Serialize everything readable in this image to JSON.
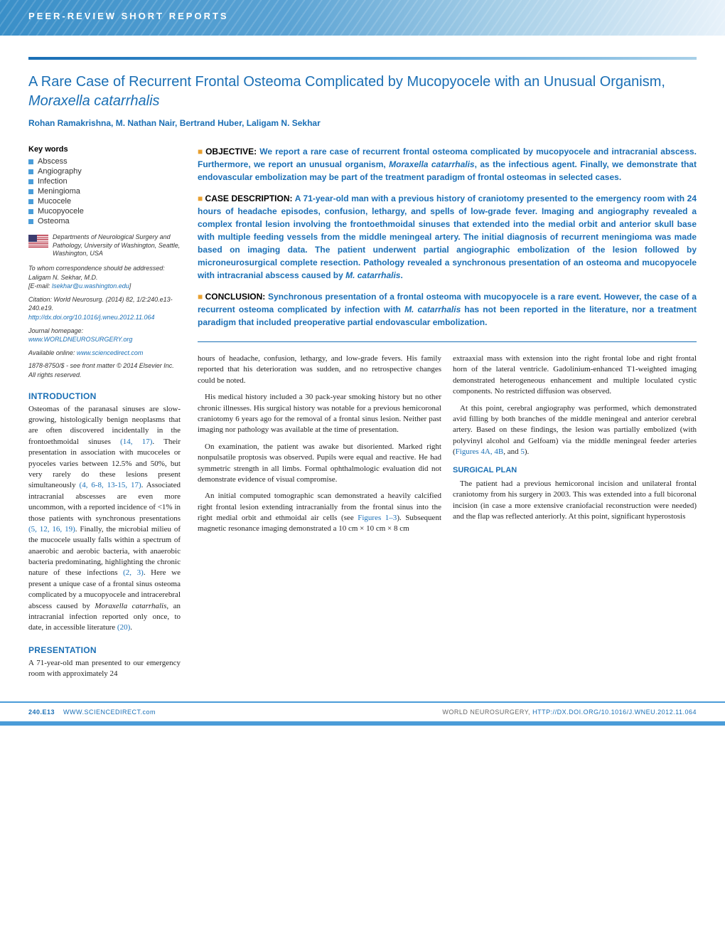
{
  "banner": {
    "text": "PEER-REVIEW SHORT REPORTS"
  },
  "title": "A Rare Case of Recurrent Frontal Osteoma Complicated by Mucopyocele with an Unusual Organism, ",
  "title_italic": "Moraxella catarrhalis",
  "authors": "Rohan Ramakrishna, M. Nathan Nair, Bertrand Huber, Laligam N. Sekhar",
  "keywords_label": "Key words",
  "keywords": [
    "Abscess",
    "Angiography",
    "Infection",
    "Meningioma",
    "Mucocele",
    "Mucopyocele",
    "Osteoma"
  ],
  "affiliation": "Departments of Neurological Surgery and Pathology, University of Washington, Seattle, Washington, USA",
  "correspondence": {
    "label": "To whom correspondence should be addressed:",
    "name": "Laligam N. Sekhar, M.D.",
    "email_label": "[E-mail: ",
    "email": "lsekhar@u.washington.edu",
    "email_close": "]"
  },
  "citation": {
    "text": "Citation: World Neurosurg. (2014) 82, 1/2:240.e13-240.e19.",
    "doi": "http://dx.doi.org/10.1016/j.wneu.2012.11.064"
  },
  "journal_homepage": {
    "label": "Journal homepage: ",
    "url": "www.WORLDNEUROSURGERY.org"
  },
  "available_online": {
    "label": "Available online: ",
    "url": "www.sciencedirect.com"
  },
  "copyright": "1878-8750/$ - see front matter © 2014 Elsevier Inc. All rights reserved.",
  "abstract": {
    "objective": {
      "label": "OBJECTIVE:",
      "text": "We report a rare case of recurrent frontal osteoma complicated by mucopyocele and intracranial abscess. Furthermore, we report an unusual organism, ",
      "italic": "Moraxella catarrhalis",
      "text2": ", as the infectious agent. Finally, we demonstrate that endovascular embolization may be part of the treatment paradigm of frontal osteomas in selected cases."
    },
    "case": {
      "label": "CASE DESCRIPTION:",
      "text": "A 71-year-old man with a previous history of craniotomy presented to the emergency room with 24 hours of headache episodes, confusion, lethargy, and spells of low-grade fever. Imaging and angiography revealed a complex frontal lesion involving the frontoethmoidal sinuses that extended into the medial orbit and anterior skull base with multiple feeding vessels from the middle meningeal artery. The initial diagnosis of recurrent meningioma was made based on imaging data. The patient underwent partial angiographic embolization of the lesion followed by microneurosurgical complete resection. Pathology revealed a synchronous presentation of an osteoma and mucopyocele with intracranial abscess caused by ",
      "italic": "M. catarrhalis",
      "text2": "."
    },
    "conclusion": {
      "label": "CONCLUSION:",
      "text": "Synchronous presentation of a frontal osteoma with mucopyocele is a rare event. However, the case of a recurrent osteoma complicated by infection with ",
      "italic": "M. catarrhalis",
      "text2": " has not been reported in the literature, nor a treatment paradigm that included preoperative partial endovascular embolization."
    }
  },
  "sections": {
    "introduction": {
      "head": "INTRODUCTION"
    },
    "presentation": {
      "head": "PRESENTATION"
    },
    "surgical_plan": {
      "head": "SURGICAL PLAN"
    }
  },
  "intro_text": {
    "p1a": "Osteomas of the paranasal sinuses are slow-growing, histologically benign neoplasms that are often discovered incidentally in the frontoethmoidal sinuses ",
    "r1": "(14, 17)",
    "p1b": ". Their presentation in association with mucoceles or pyoceles varies between 12.5% and 50%, but very rarely do these lesions present simultaneously ",
    "r2": "(4, 6-8, 13-15, 17)",
    "p1c": ". Associated intracranial abscesses are even more uncommon, with a reported incidence of <1% in those patients with synchronous presentations ",
    "r3": "(5, 12, 16, 19)",
    "p1d": ". Finally, the microbial milieu of the mucocele usually falls within a spectrum of anaerobic and aerobic bacteria, with anaerobic bacteria predominating, highlighting the chronic nature of these infections ",
    "r4": "(2, 3)",
    "p1e": ". Here we present a unique case of a frontal sinus osteoma complicated by a mucopyocele and intracerebral abscess caused by ",
    "italic": "Moraxella catarrhalis",
    "p1f": ", an intracranial infection reported only once, to date, in accessible literature ",
    "r5": "(20)",
    "p1g": "."
  },
  "presentation_text": "A 71-year-old man presented to our emergency room with approximately 24",
  "col2": {
    "p1": "hours of headache, confusion, lethargy, and low-grade fevers. His family reported that his deterioration was sudden, and no retrospective changes could be noted.",
    "p2": "His medical history included a 30 pack-year smoking history but no other chronic illnesses. His surgical history was notable for a previous hemicoronal craniotomy 6 years ago for the removal of a frontal sinus lesion. Neither past imaging nor pathology was available at the time of presentation.",
    "p3": "On examination, the patient was awake but disoriented. Marked right nonpulsatile proptosis was observed. Pupils were equal and reactive. He had symmetric strength in all limbs. Formal ophthalmologic evaluation did not demonstrate evidence of visual compromise.",
    "p4a": "An initial computed tomographic scan demonstrated a heavily calcified right frontal lesion extending intracranially from the frontal sinus into the right medial orbit and ethmoidal air cells (see ",
    "fig1": "Figures 1–3",
    "p4b": "). Subsequent magnetic resonance imaging demonstrated a 10 cm × 10 cm × 8 cm"
  },
  "col3": {
    "p1": "extraaxial mass with extension into the right frontal lobe and right frontal horn of the lateral ventricle. Gadolinium-enhanced T1-weighted imaging demonstrated heterogeneous enhancement and multiple loculated cystic components. No restricted diffusion was observed.",
    "p2a": "At this point, cerebral angiography was performed, which demonstrated avid filling by both branches of the middle meningeal and anterior cerebral artery. Based on these findings, the lesion was partially embolized (with polyvinyl alcohol and Gelfoam) via the middle meningeal feeder arteries (",
    "fig2": "Figures 4A, 4B",
    "p2b": ", and ",
    "fig3": "5",
    "p2c": ").",
    "p3": "The patient had a previous hemicoronal incision and unilateral frontal craniotomy from his surgery in 2003. This was extended into a full bicoronal incision (in case a more extensive craniofacial reconstruction were needed) and the flap was reflected anteriorly. At this point, significant hyperostosis"
  },
  "footer": {
    "page": "240.E13",
    "left_url": "WWW.SCIENCEDIRECT.com",
    "right_label": "WORLD NEUROSURGERY, ",
    "right_url": "HTTP://DX.DOI.ORG/10.1016/J.WNEU.2012.11.064"
  },
  "colors": {
    "primary_blue": "#1a6fb5",
    "light_blue": "#4a9cd8",
    "bullet_orange": "#e8a030"
  }
}
